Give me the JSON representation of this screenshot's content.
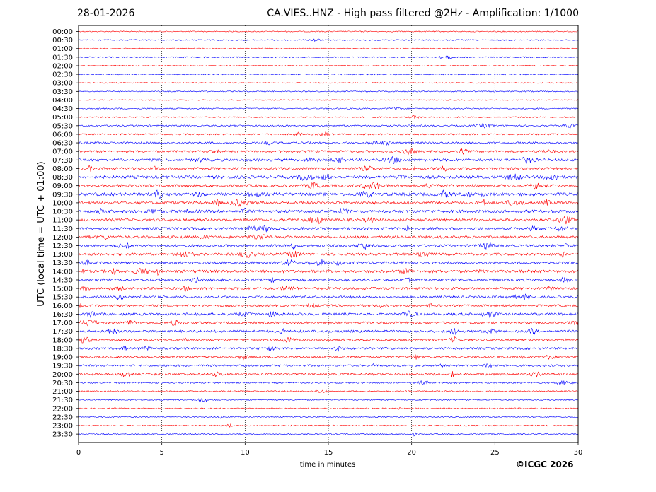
{
  "header": {
    "date": "28-01-2026",
    "title": "CA.VIES..HNZ - High pass filtered @2Hz - Amplification: 1/1000"
  },
  "footer": {
    "copyright": "©ICGC 2026"
  },
  "chart_data": {
    "type": "line",
    "title": "CA.VIES..HNZ - High pass filtered @2Hz - Amplification: 1/1000",
    "xlabel": "time in minutes",
    "ylabel": "UTC (local time = UTC + 01:00)",
    "xlim": [
      0,
      30
    ],
    "x_ticks": [
      0,
      5,
      10,
      15,
      20,
      25,
      30
    ],
    "x_tick_labels": [
      "0",
      "5",
      "10",
      "15",
      "20",
      "25",
      "30"
    ],
    "vertical_gridlines_at": [
      5,
      10,
      15,
      20,
      25
    ],
    "grid": "dotted vertical",
    "colors": {
      "odd_trace": "#0000ff",
      "even_trace": "#ff0000"
    },
    "row_labels": [
      "00:00",
      "00:30",
      "01:00",
      "01:30",
      "02:00",
      "02:30",
      "03:00",
      "03:30",
      "04:00",
      "04:30",
      "05:00",
      "05:30",
      "06:00",
      "06:30",
      "07:00",
      "07:30",
      "08:00",
      "08:30",
      "09:00",
      "09:30",
      "10:00",
      "10:30",
      "11:00",
      "11:30",
      "12:00",
      "12:30",
      "13:00",
      "13:30",
      "14:00",
      "14:30",
      "15:00",
      "15:30",
      "16:00",
      "16:30",
      "17:00",
      "17:30",
      "18:00",
      "18:30",
      "19:00",
      "19:30",
      "20:00",
      "20:30",
      "21:00",
      "21:30",
      "22:00",
      "22:30",
      "23:00",
      "23:30"
    ],
    "row_colors": [
      "#ff0000",
      "#0000ff",
      "#ff0000",
      "#0000ff",
      "#ff0000",
      "#0000ff",
      "#ff0000",
      "#0000ff",
      "#ff0000",
      "#0000ff",
      "#ff0000",
      "#0000ff",
      "#ff0000",
      "#0000ff",
      "#ff0000",
      "#0000ff",
      "#ff0000",
      "#0000ff",
      "#ff0000",
      "#0000ff",
      "#ff0000",
      "#0000ff",
      "#ff0000",
      "#0000ff",
      "#ff0000",
      "#0000ff",
      "#ff0000",
      "#0000ff",
      "#ff0000",
      "#0000ff",
      "#ff0000",
      "#0000ff",
      "#ff0000",
      "#0000ff",
      "#ff0000",
      "#0000ff",
      "#ff0000",
      "#0000ff",
      "#ff0000",
      "#0000ff",
      "#ff0000",
      "#0000ff",
      "#ff0000",
      "#0000ff",
      "#ff0000",
      "#0000ff",
      "#ff0000",
      "#0000ff"
    ],
    "row_activity": [
      0.06,
      0.1,
      0.06,
      0.12,
      0.06,
      0.06,
      0.05,
      0.08,
      0.05,
      0.12,
      0.12,
      0.2,
      0.22,
      0.35,
      0.4,
      0.55,
      0.5,
      0.65,
      0.55,
      0.7,
      0.6,
      0.65,
      0.55,
      0.5,
      0.55,
      0.5,
      0.5,
      0.5,
      0.6,
      0.55,
      0.5,
      0.45,
      0.4,
      0.5,
      0.45,
      0.5,
      0.45,
      0.4,
      0.4,
      0.35,
      0.45,
      0.2,
      0.15,
      0.12,
      0.12,
      0.1,
      0.1,
      0.1
    ]
  }
}
